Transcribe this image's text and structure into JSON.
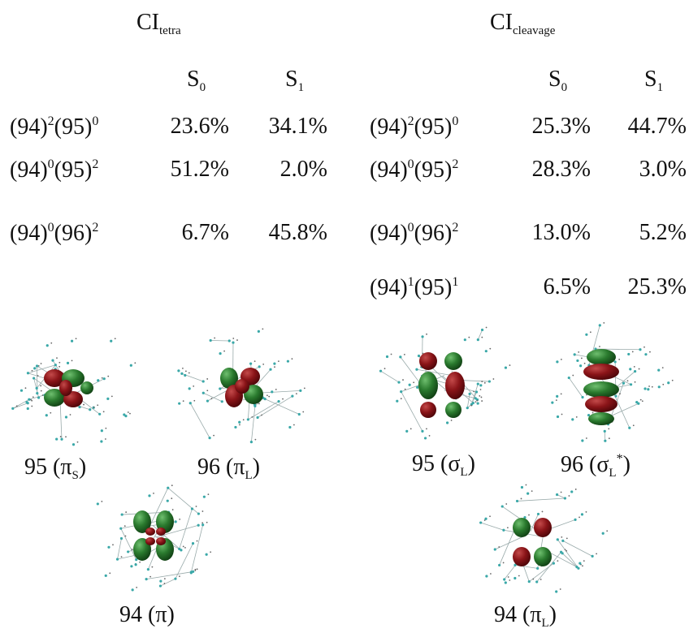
{
  "left": {
    "title": {
      "main": "CI",
      "sub": "tetra"
    },
    "headers": [
      {
        "main": "S",
        "sub": "0"
      },
      {
        "main": "S",
        "sub": "1"
      }
    ],
    "rows": [
      {
        "config": [
          "(94)",
          "2",
          "(95)",
          "0"
        ],
        "cells": [
          "23.6%",
          "34.1%"
        ]
      },
      {
        "config": [
          "(94)",
          "0",
          "(95)",
          "2"
        ],
        "cells": [
          "51.2%",
          "2.0%"
        ]
      },
      {
        "config": [
          "(94)",
          "0",
          "(96)",
          "2"
        ],
        "cells": [
          "6.7%",
          "45.8%"
        ]
      }
    ]
  },
  "right": {
    "title": {
      "main": "CI",
      "sub": "cleavage"
    },
    "headers": [
      {
        "main": "S",
        "sub": "0"
      },
      {
        "main": "S",
        "sub": "1"
      }
    ],
    "rows": [
      {
        "config": [
          "(94)",
          "2",
          "(95)",
          "0"
        ],
        "cells": [
          "25.3%",
          "44.7%"
        ]
      },
      {
        "config": [
          "(94)",
          "0",
          "(95)",
          "2"
        ],
        "cells": [
          "28.3%",
          "3.0%"
        ]
      },
      {
        "config": [
          "(94)",
          "0",
          "(96)",
          "2"
        ],
        "cells": [
          "13.0%",
          "5.2%"
        ]
      },
      {
        "config": [
          "(94)",
          "1",
          "(95)",
          "1"
        ],
        "cells": [
          "6.5%",
          "25.3%"
        ]
      }
    ]
  },
  "orbitals": [
    {
      "pre": "95 (π",
      "sub": "S",
      "post": ")"
    },
    {
      "pre": "96 (π",
      "sub": "L",
      "post": ")"
    },
    {
      "pre": "94 (π)"
    },
    {
      "pre": "95 (σ",
      "sub": "L",
      "post": ")"
    },
    {
      "pre": "96 (σ",
      "sub": "L",
      "sup": "*",
      "post": ")"
    },
    {
      "pre": "94 (π",
      "sub": "L",
      "post": ")"
    }
  ]
}
